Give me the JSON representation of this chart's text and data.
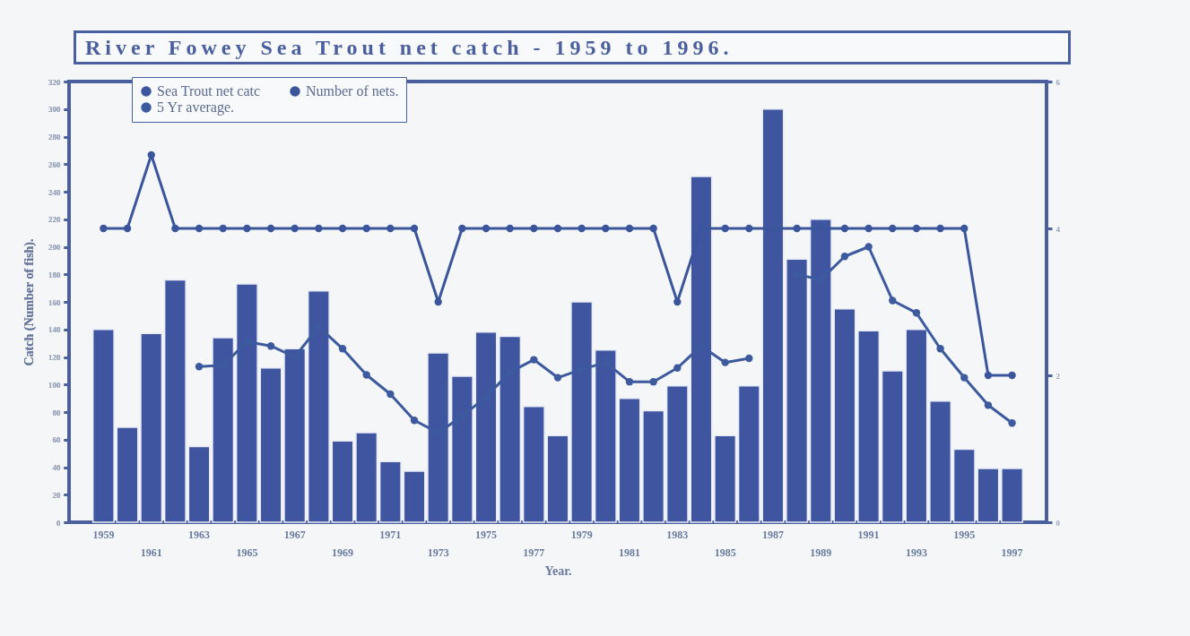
{
  "chart_data": {
    "type": "bar",
    "title": "River Fowey Sea Trout net catch - 1959 to 1996.",
    "xlabel": "Year.",
    "ylabel": "Catch (Number of fish).",
    "categories": [
      "1959",
      null,
      "1961",
      null,
      "1963",
      null,
      "1965",
      null,
      "1967",
      null,
      "1969",
      null,
      "1971",
      null,
      "1973",
      null,
      "1975",
      null,
      "1977",
      null,
      "1979",
      null,
      "1981",
      null,
      "1983",
      null,
      "1985",
      null,
      "1987",
      null,
      "1989",
      null,
      "1991",
      null,
      "1993",
      null,
      "1995",
      null,
      "1997"
    ],
    "series": [
      {
        "name": "Sea Trout net catc",
        "color": "#3f55a0",
        "values": [
          140,
          69,
          137,
          176,
          55,
          134,
          173,
          112,
          126,
          168,
          59,
          65,
          44,
          37,
          123,
          106,
          138,
          135,
          84,
          63,
          160,
          125,
          90,
          81,
          99,
          251,
          63,
          99,
          300,
          191,
          220,
          155,
          139,
          110,
          140,
          88,
          53,
          39,
          39
        ]
      },
      {
        "name": "5 Yr average.",
        "type": "line",
        "color": "#3d5a9e",
        "values": [
          null,
          null,
          null,
          null,
          113,
          114,
          131,
          128,
          120,
          142,
          126,
          107,
          93,
          74,
          65,
          77,
          91,
          109,
          118,
          105,
          111,
          116,
          102,
          102,
          112,
          128,
          116,
          119,
          null,
          180,
          176,
          193,
          200,
          161,
          152,
          126,
          105,
          85,
          72
        ]
      },
      {
        "name": "Number of nets.",
        "type": "line",
        "axis": "y2",
        "color": "#3a559c",
        "values": [
          4,
          4,
          5,
          4,
          4,
          4,
          4,
          4,
          4,
          4,
          4,
          4,
          4,
          4,
          3,
          4,
          4,
          4,
          4,
          4,
          4,
          4,
          4,
          4,
          3,
          4,
          4,
          4,
          4,
          4,
          4,
          4,
          4,
          4,
          4,
          4,
          4,
          2,
          2
        ]
      }
    ],
    "ylim": [
      0,
      320
    ],
    "yticks": [
      0,
      20,
      40,
      60,
      80,
      100,
      120,
      140,
      160,
      180,
      200,
      220,
      240,
      260,
      280,
      300,
      320
    ],
    "y2lim": [
      0,
      6
    ],
    "y2ticks": [
      0,
      2,
      4,
      6
    ],
    "legend": "top left",
    "marker": "circle",
    "grid": false
  }
}
